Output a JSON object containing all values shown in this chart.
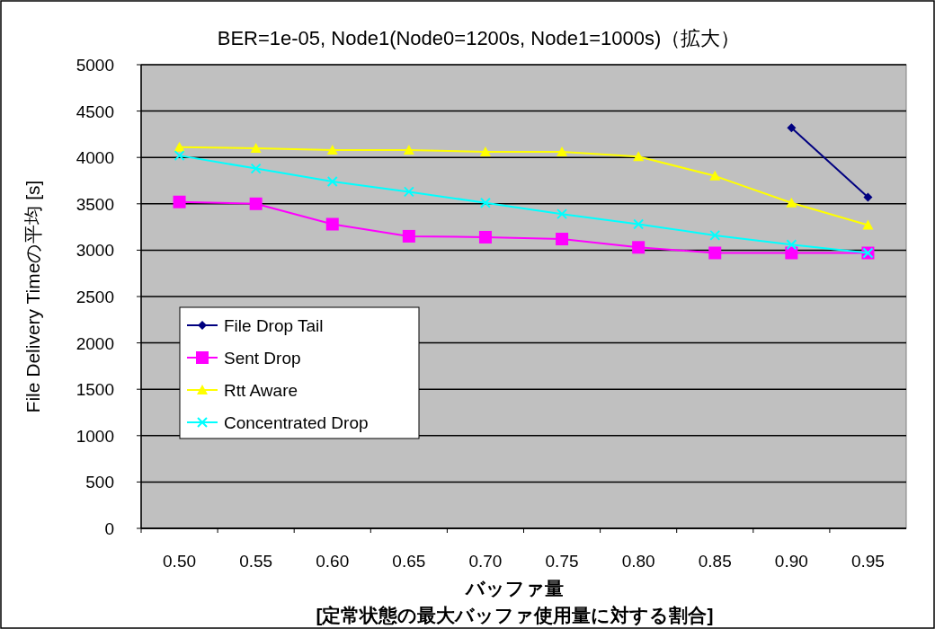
{
  "chart_data": {
    "type": "line",
    "title": "BER=1e-05, Node1(Node0=1200s, Node1=1000s)（拡大）",
    "xlabel": "バッファ量\n[定常状態の最大バッファ使用量に対する割合]",
    "ylabel": "File Delivery Timeの平均 [s]",
    "categories": [
      "0.50",
      "0.55",
      "0.60",
      "0.65",
      "0.70",
      "0.75",
      "0.80",
      "0.85",
      "0.90",
      "0.95"
    ],
    "series": [
      {
        "name": "File Drop Tail",
        "color": "#000080",
        "marker": "diamond",
        "values": [
          null,
          null,
          null,
          null,
          null,
          null,
          null,
          null,
          4320,
          3570
        ]
      },
      {
        "name": "Sent Drop",
        "color": "#ff00ff",
        "marker": "square",
        "values": [
          3520,
          3500,
          3280,
          3150,
          3140,
          3120,
          3030,
          2970,
          2970,
          2970
        ]
      },
      {
        "name": "Rtt Aware",
        "color": "#ffff00",
        "marker": "triangle",
        "values": [
          4110,
          4100,
          4080,
          4080,
          4060,
          4060,
          4010,
          3800,
          3510,
          3270
        ]
      },
      {
        "name": "Concentrated Drop",
        "color": "#00ffff",
        "marker": "cross",
        "values": [
          4020,
          3880,
          3740,
          3630,
          3510,
          3390,
          3280,
          3160,
          3060,
          2970
        ]
      }
    ],
    "ylim": [
      0,
      5000
    ],
    "yticks": [
      0,
      500,
      1000,
      1500,
      2000,
      2500,
      3000,
      3500,
      4000,
      4500,
      5000
    ],
    "grid": "y",
    "legend": "left"
  }
}
